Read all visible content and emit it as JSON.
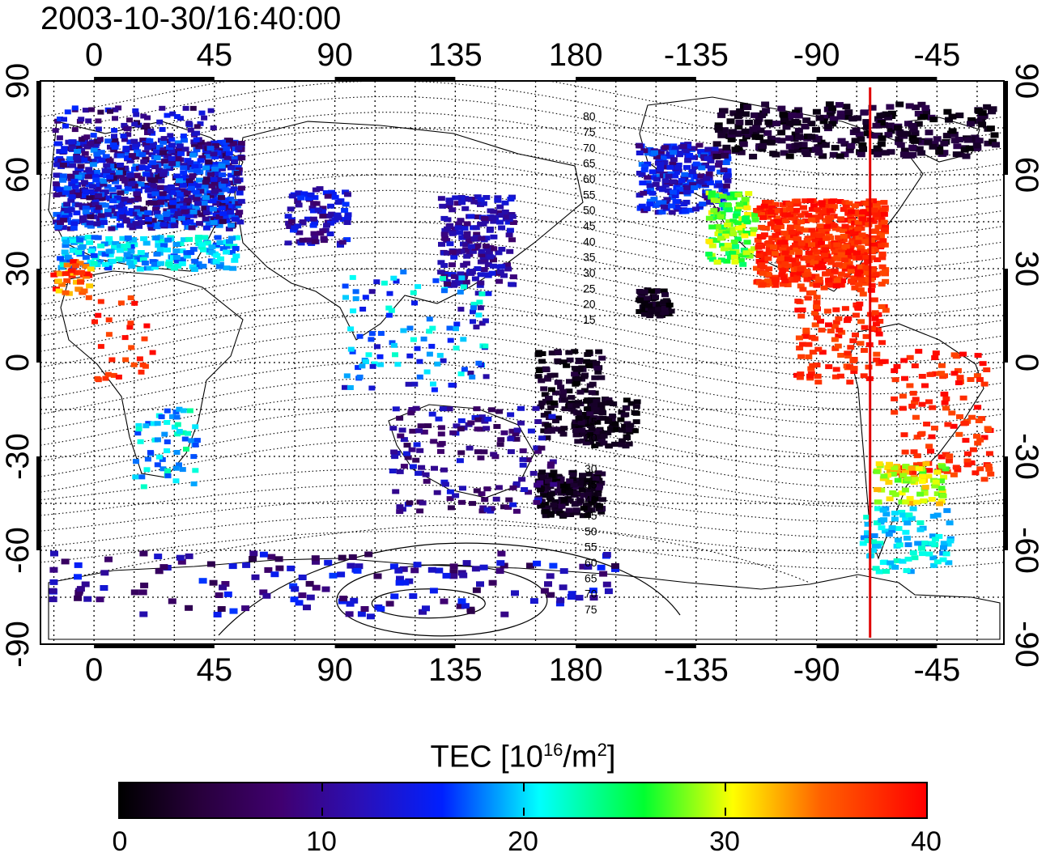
{
  "title": "2003-10-30/16:40:00",
  "map": {
    "top_lon_labels": [
      "0",
      "45",
      "90",
      "135",
      "180",
      "-135",
      "-90",
      "-45"
    ],
    "bottom_lon_labels": [
      "0",
      "45",
      "90",
      "135",
      "180",
      "-135",
      "-90",
      "-45"
    ],
    "left_lat_labels": [
      "90",
      "60",
      "30",
      "0",
      "-30",
      "-60",
      "-90"
    ],
    "right_lat_labels": [
      "90",
      "60",
      "30",
      "0",
      "-30",
      "-60",
      "-90"
    ],
    "contour_labels_north": [
      "80",
      "75",
      "70",
      "65",
      "60",
      "55",
      "50",
      "45",
      "40",
      "35",
      "30",
      "25",
      "20",
      "15"
    ],
    "contour_labels_south": [
      "15",
      "20",
      "30",
      "35",
      "40",
      "45",
      "50",
      "55",
      "60",
      "65",
      "70",
      "75"
    ],
    "meridian_marker_color": "#e00000",
    "meridian_marker_lon": -70
  },
  "colorbar": {
    "title_main": "TEC  [10",
    "title_exp1": "16",
    "title_mid": "/m",
    "title_exp2": "2",
    "title_end": "]",
    "min": 0,
    "max": 40,
    "tick_labels": [
      "0",
      "10",
      "20",
      "30",
      "40"
    ],
    "colors": [
      "#000000",
      "#400070",
      "#0020ff",
      "#00ffff",
      "#00ff30",
      "#ffff00",
      "#ff0000"
    ]
  }
}
